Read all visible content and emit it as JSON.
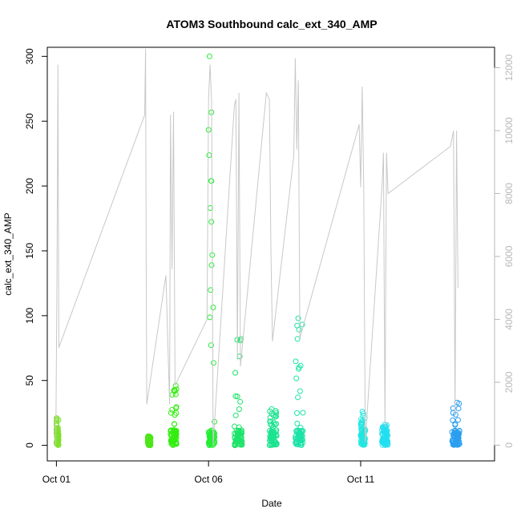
{
  "chart_data": {
    "type": "scatter",
    "title": "ATOM3 Southbound calc_ext_340_AMP",
    "xlabel": "Date",
    "ylabel": "calc_ext_340_AMP",
    "x_ticks": [
      {
        "day": 1,
        "label": "Oct 01"
      },
      {
        "day": 6,
        "label": "Oct 06"
      },
      {
        "day": 11,
        "label": "Oct 11"
      }
    ],
    "xlim": [
      0.7,
      15.4
    ],
    "ylim": [
      -12,
      307
    ],
    "y_ticks": [
      0,
      50,
      100,
      150,
      200,
      250,
      300
    ],
    "y2lim": [
      -500,
      12650
    ],
    "y2_ticks": [
      0,
      2000,
      4000,
      6000,
      8000,
      10000,
      12000
    ],
    "point_clusters": [
      {
        "day_start": 1.0,
        "day_end": 1.07,
        "y_max": 21,
        "color": "#7ee12a"
      },
      {
        "day_start": 4.0,
        "day_end": 4.1,
        "y_max": 7,
        "color": "#4de61a"
      },
      {
        "day_start": 4.75,
        "day_end": 4.95,
        "y_max": 46,
        "color": "#33ee11"
      },
      {
        "day_start": 6.0,
        "day_end": 6.2,
        "y_max": 300,
        "color": "#22ee33"
      },
      {
        "day_start": 6.85,
        "day_end": 7.1,
        "y_max": 82,
        "color": "#1ee36a"
      },
      {
        "day_start": 8.0,
        "day_end": 8.25,
        "y_max": 28,
        "color": "#1de390"
      },
      {
        "day_start": 8.85,
        "day_end": 9.1,
        "y_max": 98,
        "color": "#1de3a8"
      },
      {
        "day_start": 11.0,
        "day_end": 11.15,
        "y_max": 26,
        "color": "#22e6e0"
      },
      {
        "day_start": 11.7,
        "day_end": 11.9,
        "y_max": 16,
        "color": "#22dff0"
      },
      {
        "day_start": 14.0,
        "day_end": 14.25,
        "y_max": 33,
        "color": "#2a9ff0"
      }
    ],
    "secondary_line": {
      "axis": "right",
      "color": "#c8c8c8",
      "points": [
        [
          0.98,
          0
        ],
        [
          1.02,
          5400
        ],
        [
          1.05,
          12100
        ],
        [
          1.08,
          3100
        ],
        [
          3.9,
          10500
        ],
        [
          3.93,
          12600
        ],
        [
          3.95,
          5700
        ],
        [
          3.97,
          1300
        ],
        [
          4.6,
          5400
        ],
        [
          4.72,
          1300
        ],
        [
          4.75,
          10500
        ],
        [
          4.8,
          5600
        ],
        [
          4.85,
          10600
        ],
        [
          4.9,
          1900
        ],
        [
          5.95,
          4000
        ],
        [
          6.0,
          11000
        ],
        [
          6.05,
          12100
        ],
        [
          6.1,
          10900
        ],
        [
          6.15,
          0
        ],
        [
          6.85,
          10800
        ],
        [
          6.9,
          11000
        ],
        [
          6.95,
          2700
        ],
        [
          7.0,
          11200
        ],
        [
          7.05,
          2500
        ],
        [
          7.9,
          11200
        ],
        [
          8.0,
          11000
        ],
        [
          8.05,
          6200
        ],
        [
          8.1,
          3300
        ],
        [
          8.8,
          9200
        ],
        [
          8.85,
          12300
        ],
        [
          8.9,
          9400
        ],
        [
          8.95,
          11600
        ],
        [
          9.0,
          3400
        ],
        [
          10.95,
          10200
        ],
        [
          11.0,
          8200
        ],
        [
          11.05,
          11400
        ],
        [
          11.1,
          8200
        ],
        [
          11.15,
          100
        ],
        [
          11.7,
          8200
        ],
        [
          11.75,
          9300
        ],
        [
          11.8,
          600
        ],
        [
          11.85,
          9300
        ],
        [
          11.9,
          8000
        ],
        [
          13.95,
          9500
        ],
        [
          14.05,
          10000
        ],
        [
          14.1,
          1000
        ],
        [
          14.15,
          10000
        ],
        [
          14.2,
          5000
        ]
      ]
    }
  }
}
